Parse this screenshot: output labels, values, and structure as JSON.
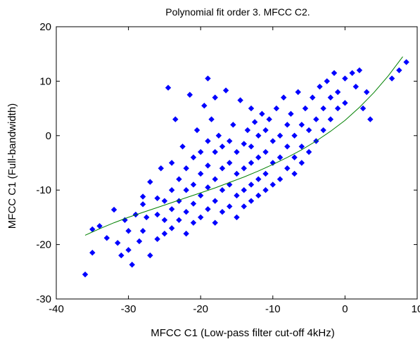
{
  "chart_data": {
    "type": "scatter",
    "title": "Polynomial fit order 3. MFCC C2.",
    "xlabel": "MFCC C1 (Low-pass filter cut-off 4kHz)",
    "ylabel": "MFCC C1 (Full-bandwidth)",
    "xlim": [
      -40,
      10
    ],
    "ylim": [
      -30,
      20
    ],
    "xticks": [
      -40,
      -30,
      -20,
      -10,
      0,
      10
    ],
    "yticks": [
      -30,
      -20,
      -10,
      0,
      10,
      20
    ],
    "xtick_labels": [
      "-40",
      "-30",
      "-20",
      "-10",
      "0",
      "10"
    ],
    "ytick_labels": [
      "-30",
      "-20",
      "-10",
      "0",
      "10",
      "20"
    ],
    "grid": false,
    "legend": "none",
    "series": [
      {
        "kind": "scatter",
        "marker": "diamond",
        "color": "#0000ff",
        "points": [
          [
            -36,
            -25.5
          ],
          [
            -35,
            -21.5
          ],
          [
            -35,
            -17.2
          ],
          [
            -34,
            -16.6
          ],
          [
            -33,
            -18.8
          ],
          [
            -32,
            -13.6
          ],
          [
            -31.5,
            -19.7
          ],
          [
            -30,
            -17.5
          ],
          [
            -31,
            -22
          ],
          [
            -30.5,
            -15.5
          ],
          [
            -30,
            -21
          ],
          [
            -29.5,
            -23.7
          ],
          [
            -29,
            -14.5
          ],
          [
            -28.5,
            -19.4
          ],
          [
            -28,
            -11.2
          ],
          [
            -28,
            -12.6
          ],
          [
            -28,
            -17.5
          ],
          [
            -27.5,
            -15
          ],
          [
            -27,
            -22
          ],
          [
            -27,
            -8.5
          ],
          [
            -26,
            -11.5
          ],
          [
            -26,
            -14.5
          ],
          [
            -26,
            -19
          ],
          [
            -25.5,
            -6
          ],
          [
            -25,
            -12
          ],
          [
            -25,
            -15.5
          ],
          [
            -25,
            -18
          ],
          [
            -24.5,
            8.8
          ],
          [
            -24,
            -5
          ],
          [
            -24,
            -10
          ],
          [
            -24,
            -13.5
          ],
          [
            -24,
            -17
          ],
          [
            -23.5,
            3
          ],
          [
            -23,
            -8
          ],
          [
            -23,
            -12
          ],
          [
            -23,
            -15.5
          ],
          [
            -22.5,
            -2
          ],
          [
            -22,
            -6
          ],
          [
            -22,
            -10
          ],
          [
            -22,
            -14
          ],
          [
            -22,
            -18
          ],
          [
            -21.5,
            7.5
          ],
          [
            -21,
            -4
          ],
          [
            -21,
            -9
          ],
          [
            -21,
            -12.5
          ],
          [
            -21,
            -16
          ],
          [
            -20.5,
            1
          ],
          [
            -20,
            -3
          ],
          [
            -20,
            -7
          ],
          [
            -20,
            -11
          ],
          [
            -20,
            -15
          ],
          [
            -19.5,
            5.5
          ],
          [
            -19,
            10.5
          ],
          [
            -19,
            -1
          ],
          [
            -19,
            -5.5
          ],
          [
            -19,
            -9.5
          ],
          [
            -19,
            -13.5
          ],
          [
            -18.5,
            3
          ],
          [
            -18,
            7
          ],
          [
            -18,
            -3
          ],
          [
            -18,
            -8
          ],
          [
            -18,
            -12
          ],
          [
            -18,
            -16
          ],
          [
            -17.5,
            0
          ],
          [
            -17,
            -2
          ],
          [
            -17,
            -6
          ],
          [
            -17,
            -10
          ],
          [
            -17,
            -14
          ],
          [
            -16.5,
            8.3
          ],
          [
            -16,
            -1
          ],
          [
            -16,
            -5
          ],
          [
            -16,
            -9
          ],
          [
            -16,
            -13
          ],
          [
            -15.5,
            2
          ],
          [
            -15,
            -3
          ],
          [
            -15,
            -7
          ],
          [
            -15,
            -11
          ],
          [
            -15,
            -15
          ],
          [
            -14.5,
            6.5
          ],
          [
            -14,
            -1.5
          ],
          [
            -14,
            -6
          ],
          [
            -14,
            -10
          ],
          [
            -14,
            -13
          ],
          [
            -13.5,
            1
          ],
          [
            -13,
            5
          ],
          [
            -13,
            -2
          ],
          [
            -13,
            -5
          ],
          [
            -13,
            -9
          ],
          [
            -13,
            -12
          ],
          [
            -12.5,
            2.5
          ],
          [
            -12,
            0
          ],
          [
            -12,
            -4
          ],
          [
            -12,
            -8
          ],
          [
            -12,
            -11
          ],
          [
            -11.5,
            4
          ],
          [
            -11,
            1
          ],
          [
            -11,
            -3
          ],
          [
            -11,
            -7
          ],
          [
            -11,
            -10
          ],
          [
            -10.5,
            3
          ],
          [
            -10,
            -1
          ],
          [
            -10,
            -5
          ],
          [
            -10,
            -9
          ],
          [
            -9.5,
            5
          ],
          [
            -9,
            0
          ],
          [
            -9,
            -4
          ],
          [
            -9,
            -8
          ],
          [
            -8.5,
            7
          ],
          [
            -8,
            2
          ],
          [
            -8,
            -2
          ],
          [
            -8,
            -6
          ],
          [
            -7.5,
            4
          ],
          [
            -7,
            0
          ],
          [
            -7,
            -4
          ],
          [
            -7,
            -7
          ],
          [
            -6.5,
            8
          ],
          [
            -6,
            2
          ],
          [
            -6,
            -2
          ],
          [
            -6,
            -5
          ],
          [
            -5.5,
            5
          ],
          [
            -5,
            1
          ],
          [
            -5,
            -3
          ],
          [
            -4.5,
            7
          ],
          [
            -4,
            3
          ],
          [
            -4,
            -1
          ],
          [
            -3.5,
            9
          ],
          [
            -3,
            5
          ],
          [
            -3,
            1
          ],
          [
            -2.5,
            10
          ],
          [
            -2,
            7
          ],
          [
            -2,
            3
          ],
          [
            -1.5,
            11.5
          ],
          [
            -1,
            8
          ],
          [
            -1,
            5
          ],
          [
            0,
            10.5
          ],
          [
            0,
            6
          ],
          [
            1,
            11.5
          ],
          [
            1.5,
            9
          ],
          [
            2,
            12
          ],
          [
            2.5,
            5
          ],
          [
            3,
            8
          ],
          [
            3.5,
            3
          ],
          [
            6.5,
            10.5
          ],
          [
            8.5,
            13.5
          ],
          [
            7.5,
            12
          ]
        ]
      }
    ],
    "fit": {
      "kind": "line",
      "color": "#008000",
      "label_on_chart": false,
      "x": [
        -36,
        -34,
        -32,
        -30,
        -28,
        -26,
        -24,
        -22,
        -20,
        -18,
        -16,
        -14,
        -12,
        -10,
        -8,
        -6,
        -4,
        -2,
        0,
        2,
        4,
        6,
        8
      ],
      "y": [
        -18.3,
        -17.1,
        -16,
        -15,
        -14.1,
        -13.2,
        -12.3,
        -11.4,
        -10.5,
        -9.6,
        -8.6,
        -7.6,
        -6.5,
        -5.3,
        -4,
        -2.6,
        -1,
        0.8,
        2.8,
        5.2,
        7.9,
        11,
        14.5
      ]
    }
  }
}
